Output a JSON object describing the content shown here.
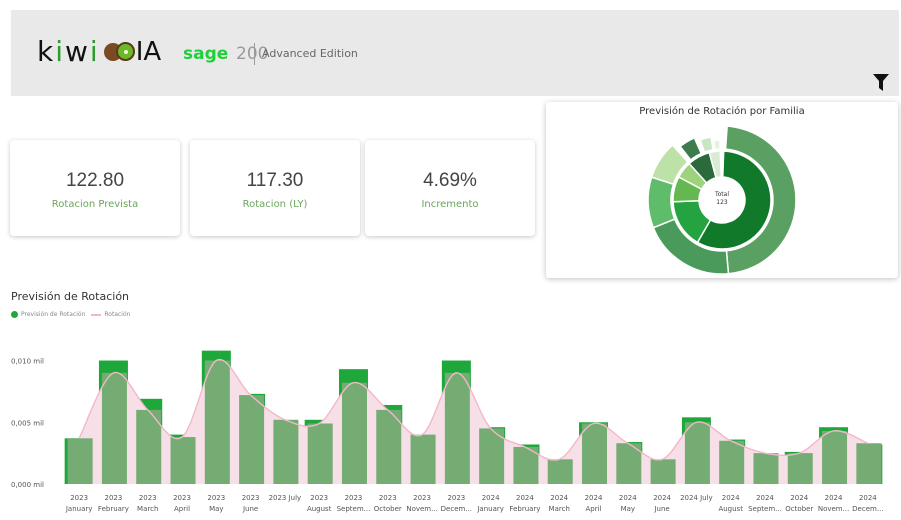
{
  "header": {
    "logo_kiwi_1": "k",
    "logo_kiwi_2": "i",
    "logo_kiwi_3": "w",
    "logo_kiwi_4": "i",
    "logo_ia": "IA",
    "sage": "sage",
    "sage_version": "200",
    "edition": "Advanced Edition"
  },
  "kpis": [
    {
      "value": "122.80",
      "label": "Rotacion Prevista"
    },
    {
      "value": "117.30",
      "label": "Rotacion (LY)"
    },
    {
      "value": "4.69%",
      "label": "Incremento"
    }
  ],
  "donut": {
    "title": "Previsión de Rotación por Familia",
    "center_label": "Total",
    "center_value": "123"
  },
  "colors": {
    "bar_dark": "#1ea83c",
    "bar_light": "#74ac74",
    "area_fill": "#f6dfe6",
    "line": "#f2b8c8"
  },
  "chart_data": {
    "type": "bar",
    "title": "Previsión de Rotación",
    "series": [
      {
        "name": "Previsión de Rotación",
        "values": [
          0.0037,
          0.01,
          0.0069,
          0.004,
          0.0108,
          0.0073,
          0.0045,
          0.0052,
          0.0093,
          0.0064,
          0.0037,
          0.01,
          0.0046,
          0.0032,
          0.0018,
          0.005,
          0.0034,
          0.0019,
          0.0054,
          0.0036,
          0.0022,
          0.0026,
          0.0046,
          0.0032
        ]
      },
      {
        "name": "Rotación",
        "values": [
          0.0037,
          0.009,
          0.006,
          0.0038,
          0.01,
          0.0072,
          0.0052,
          0.0049,
          0.0082,
          0.006,
          0.004,
          0.009,
          0.0045,
          0.003,
          0.002,
          0.0049,
          0.0033,
          0.002,
          0.005,
          0.0035,
          0.0025,
          0.0025,
          0.0043,
          0.0033
        ]
      }
    ],
    "categories": [
      [
        "2023",
        "January"
      ],
      [
        "2023",
        "February"
      ],
      [
        "2023",
        "March"
      ],
      [
        "2023",
        "April"
      ],
      [
        "2023",
        "May"
      ],
      [
        "2023",
        "June"
      ],
      [
        "2023 July",
        ""
      ],
      [
        "2023",
        "August"
      ],
      [
        "2023",
        "Septem..."
      ],
      [
        "2023",
        "October"
      ],
      [
        "2023",
        "Novem..."
      ],
      [
        "2023",
        "Decem..."
      ],
      [
        "2024",
        "January"
      ],
      [
        "2024",
        "February"
      ],
      [
        "2024",
        "March"
      ],
      [
        "2024",
        "April"
      ],
      [
        "2024",
        "May"
      ],
      [
        "2024",
        "June"
      ],
      [
        "2024 July",
        ""
      ],
      [
        "2024",
        "August"
      ],
      [
        "2024",
        "Septem..."
      ],
      [
        "2024",
        "October"
      ],
      [
        "2024",
        "Novem..."
      ],
      [
        "2024",
        "Decem..."
      ]
    ],
    "y_ticks": [
      {
        "v": 0,
        "label": "0,000 mil"
      },
      {
        "v": 0.005,
        "label": "0,005 mil"
      },
      {
        "v": 0.01,
        "label": "0,010 mil"
      }
    ],
    "ylim": [
      0,
      0.0115
    ],
    "legend": "top-left"
  }
}
